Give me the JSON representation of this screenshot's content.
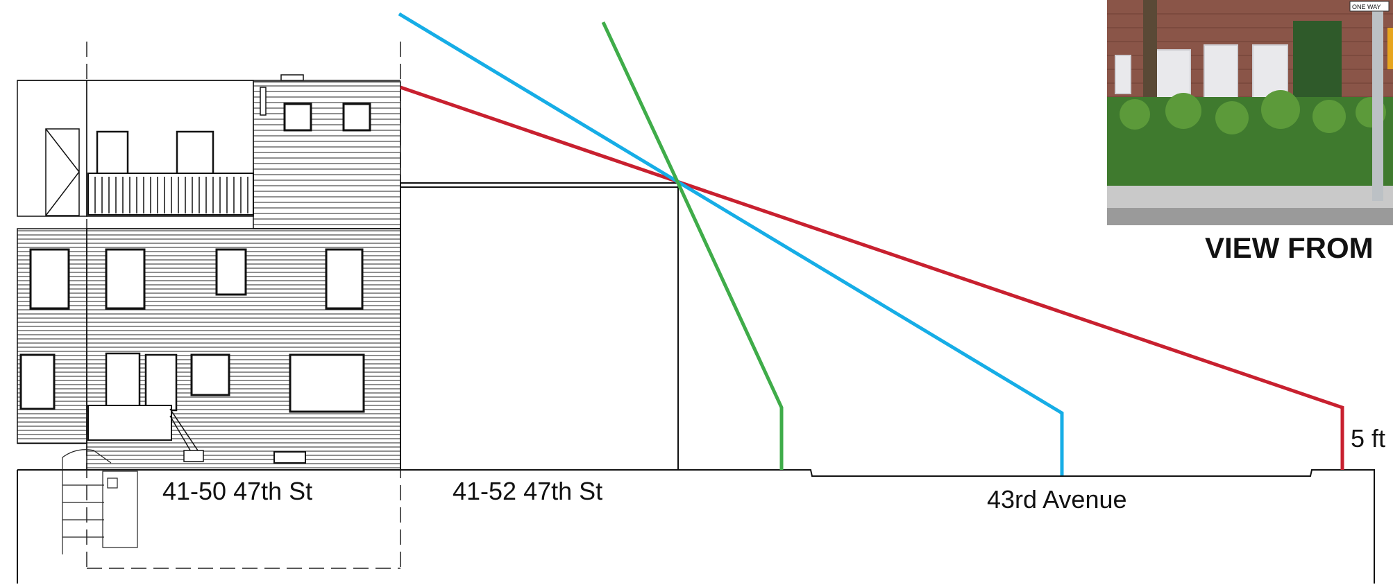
{
  "labels": {
    "lot_left": "41-50 47th St",
    "lot_right": "41-52 47th St",
    "street": "43rd Avenue",
    "eye_height": "5 ft"
  },
  "photo": {
    "caption": "VIEW FROM",
    "sign_text": "ONE WAY"
  },
  "colors": {
    "sightline_red": "#c8202f",
    "sightline_blue": "#16ade6",
    "sightline_green": "#3fac49",
    "linework": "#111111"
  }
}
